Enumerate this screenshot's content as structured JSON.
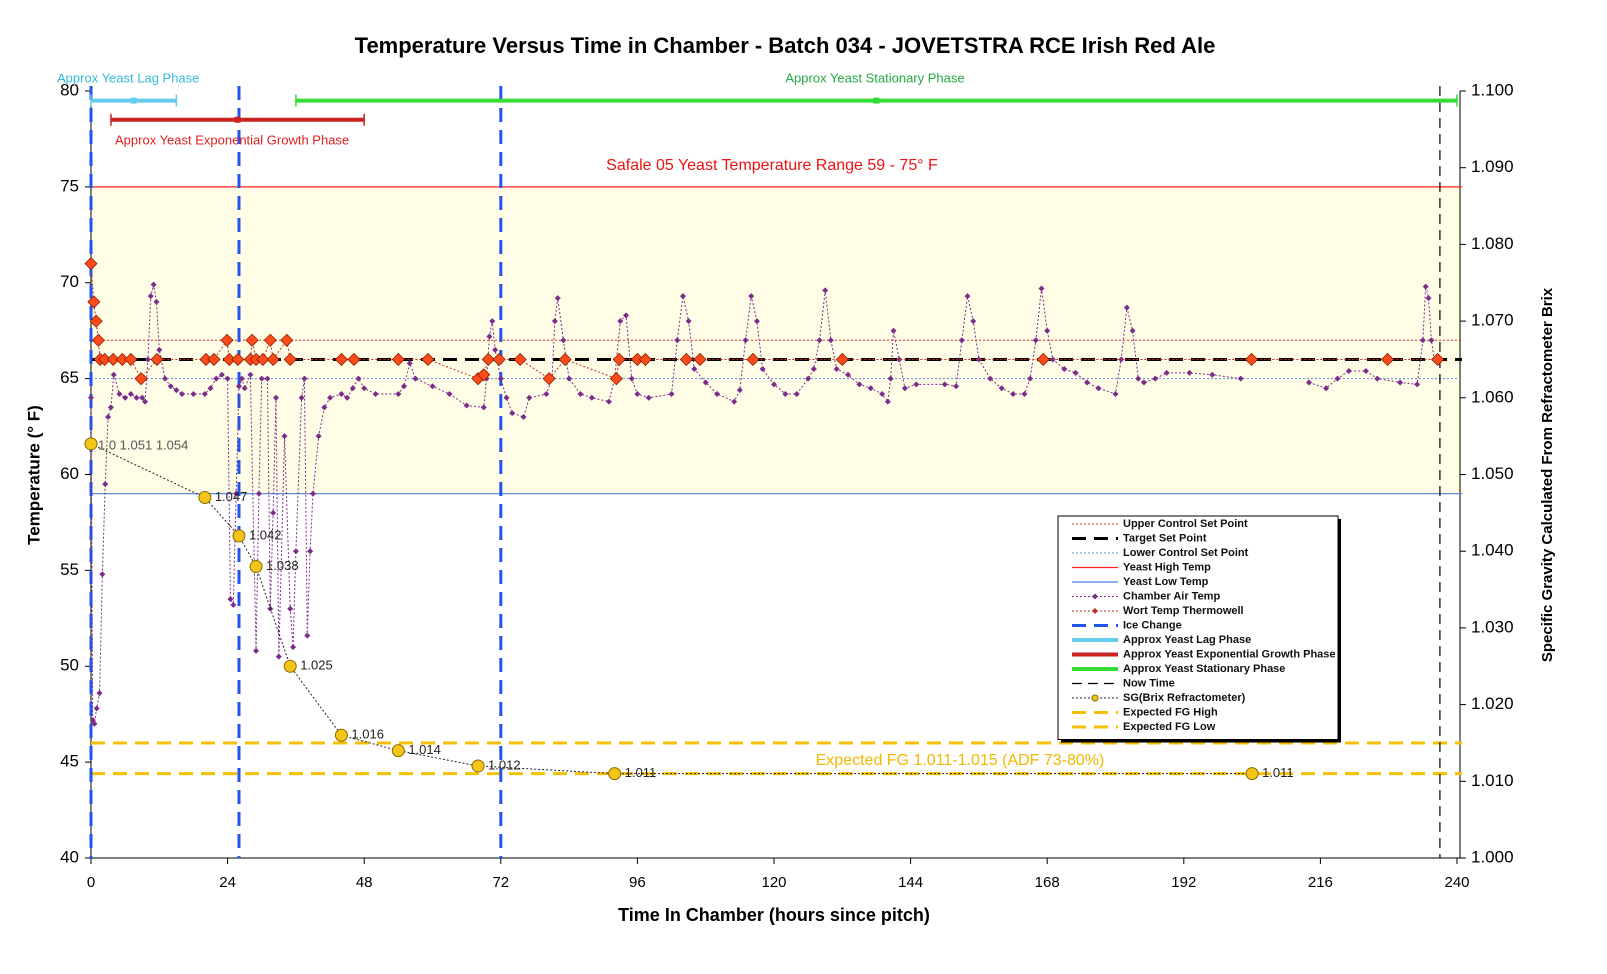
{
  "chart_data": {
    "type": "line",
    "title": "Temperature Versus Time in Chamber - Batch 034 - JOVETSTRA RCE Irish Red Ale",
    "xlabel": "Time In Chamber (hours since pitch)",
    "ylabel": "Temperature (° F)",
    "y2label": "Specific Gravity Calculated From Refractometer Brix",
    "xlim": [
      0,
      240
    ],
    "xticks": [
      0,
      24,
      48,
      72,
      96,
      120,
      144,
      168,
      192,
      216,
      240
    ],
    "ylim": [
      40,
      80
    ],
    "yticks": [
      40,
      45,
      50,
      55,
      60,
      65,
      70,
      75,
      80
    ],
    "y2lim": [
      1.0,
      1.1
    ],
    "y2ticks": [
      {
        "value": 1.0,
        "label": "1.000"
      },
      {
        "value": 1.01,
        "label": "1.010"
      },
      {
        "value": 1.02,
        "label": "1.020"
      },
      {
        "value": 1.03,
        "label": "1.030"
      },
      {
        "value": 1.04,
        "label": "1.040"
      },
      {
        "value": 1.05,
        "label": "1.050"
      },
      {
        "value": 1.06,
        "label": "1.060"
      },
      {
        "value": 1.07,
        "label": "1.070"
      },
      {
        "value": 1.08,
        "label": "1.080"
      },
      {
        "value": 1.09,
        "label": "1.090"
      },
      {
        "value": 1.1,
        "label": "1.100"
      }
    ],
    "legend": "lower right",
    "series": [
      {
        "name": "Upper Control Set Point",
        "kind": "hline",
        "value": 67,
        "color": "#e03030",
        "style": "dotted"
      },
      {
        "name": "Target Set Point",
        "kind": "hline",
        "value": 66,
        "color": "#000000",
        "style": "dashed"
      },
      {
        "name": "Lower Control Set Point",
        "kind": "hline",
        "value": 65,
        "color": "#5b8fd6",
        "style": "dotted"
      },
      {
        "name": "Yeast High Temp",
        "kind": "hline",
        "value": 75,
        "color": "#ff2020",
        "style": "solid"
      },
      {
        "name": "Yeast Low Temp",
        "kind": "hline",
        "value": 59,
        "color": "#4a7fe0",
        "style": "solid"
      },
      {
        "name": "Chamber Air Temp",
        "kind": "line",
        "color": "#7b2d8b",
        "style": "dotted",
        "marker": "diamond",
        "x": [
          0,
          0.3,
          0.6,
          1,
          1.5,
          2,
          2.5,
          3,
          3.5,
          4,
          5,
          6,
          7,
          8,
          9,
          9.5,
          10,
          10.5,
          11,
          11.5,
          12,
          13,
          14,
          15,
          16,
          18,
          20,
          21,
          22,
          23,
          24,
          24.5,
          25,
          25.5,
          26,
          26.5,
          27,
          28,
          29,
          29.5,
          30,
          31,
          31.5,
          32,
          32.5,
          33,
          34,
          35,
          35.5,
          36,
          37,
          37.5,
          38,
          38.5,
          39,
          40,
          41,
          42,
          44,
          45,
          46,
          47,
          48,
          50,
          54,
          55,
          56,
          57,
          60,
          63,
          66,
          69,
          69.5,
          70,
          70.5,
          71,
          72,
          73,
          74,
          76,
          77,
          80,
          81,
          81.5,
          82,
          83,
          84,
          86,
          88,
          91,
          92,
          93,
          94,
          95,
          96,
          98,
          102,
          103,
          104,
          105,
          106,
          108,
          110,
          113,
          114,
          115,
          116,
          117,
          118,
          120,
          122,
          124,
          126,
          127,
          128,
          129,
          130,
          131,
          133,
          135,
          137,
          139,
          140,
          140.5,
          141,
          142,
          143,
          145,
          150,
          152,
          153,
          154,
          155,
          156,
          158,
          160,
          162,
          164,
          165,
          166,
          167,
          168,
          169,
          171,
          173,
          175,
          177,
          180,
          181,
          182,
          183,
          184,
          185,
          187,
          189,
          193,
          197,
          202,
          208,
          214,
          217,
          219,
          221,
          224,
          226,
          230,
          233,
          234,
          234.5,
          235,
          235.5,
          236
        ],
        "values": [
          64,
          47.2,
          47,
          47.8,
          48.6,
          54.8,
          59.5,
          63,
          63.5,
          65.2,
          64.2,
          64,
          64.2,
          64,
          64,
          63.8,
          66,
          69.3,
          69.9,
          69,
          66.5,
          65,
          64.6,
          64.4,
          64.2,
          64.2,
          64.2,
          64.5,
          65,
          65.2,
          65,
          53.5,
          53.2,
          59,
          64.6,
          65,
          64.5,
          65.2,
          50.8,
          59,
          65,
          65,
          53,
          58,
          64,
          50.5,
          62,
          53,
          51,
          56,
          64,
          65,
          51.6,
          56,
          59,
          62,
          63.5,
          64,
          64.2,
          64,
          64.5,
          65,
          64.5,
          64.2,
          64.2,
          64.6,
          65.8,
          65,
          64.6,
          64.2,
          63.6,
          63.5,
          65,
          67.2,
          68,
          66.5,
          65,
          64,
          63.2,
          63,
          64,
          64.2,
          65,
          68,
          69.2,
          67,
          65,
          64.2,
          64,
          63.8,
          65,
          68,
          68.3,
          65,
          64.2,
          64,
          64.2,
          67,
          69.3,
          68,
          65.5,
          64.8,
          64.2,
          63.8,
          64.4,
          67,
          69.3,
          68,
          65.5,
          64.7,
          64.2,
          64.2,
          65,
          65.5,
          67,
          69.6,
          67,
          65.5,
          65.2,
          64.7,
          64.5,
          64.2,
          63.8,
          65,
          67.5,
          66,
          64.5,
          64.7,
          64.7,
          64.6,
          67,
          69.3,
          68,
          66,
          65,
          64.5,
          64.2,
          64.2,
          65,
          67,
          69.7,
          67.5,
          66,
          65.5,
          65.3,
          64.8,
          64.5,
          64.2,
          66,
          68.7,
          67.5,
          65,
          64.8,
          65,
          65.3,
          65.3,
          65.2,
          65,
          null,
          64.8,
          64.5,
          65,
          65.4,
          65.4,
          65,
          64.8,
          64.7,
          67,
          69.8,
          69.2,
          67,
          66
        ]
      },
      {
        "name": "Wort Temp Thermowell",
        "kind": "line",
        "color": "#c0301c",
        "style": "dotted",
        "marker": "bigdiamond",
        "x": [
          0,
          0.5,
          0.9,
          1.3,
          1.6,
          2.4,
          3.9,
          5.5,
          7,
          8.8,
          11.6,
          20.2,
          21.6,
          23.9,
          24.3,
          25.8,
          28,
          28.3,
          29,
          30.2,
          31.5,
          32,
          34.4,
          35,
          44,
          46.2,
          54,
          59.2,
          68,
          69,
          69.8,
          71.7,
          75.4,
          80.5,
          83.3,
          92.3,
          92.8,
          96,
          97.4,
          104.6,
          107,
          116.3,
          132,
          167.3,
          203.9,
          227.8,
          236.6
        ],
        "values": [
          71,
          69,
          68,
          67,
          66,
          66,
          66,
          66,
          66,
          65,
          66,
          66,
          66,
          67,
          66,
          66,
          66,
          67,
          66,
          66,
          67,
          66,
          67,
          66,
          66,
          66,
          66,
          66,
          65,
          65.2,
          66,
          66,
          66,
          65,
          66,
          65,
          66,
          66,
          66,
          66,
          66,
          66,
          66,
          66,
          66,
          66,
          66
        ]
      },
      {
        "name": "Ice Change",
        "kind": "vline",
        "x": [
          0,
          26,
          72
        ],
        "color": "#2255ee",
        "style": "dashed"
      },
      {
        "name": "Approx Yeast Lag Phase",
        "kind": "span",
        "x": [
          0,
          15
        ],
        "values": [
          79.5,
          79.5
        ],
        "color": "#66ccee",
        "style": "solid"
      },
      {
        "name": "Approx Yeast Exponential Growth Phase",
        "kind": "span",
        "x": [
          3.5,
          48
        ],
        "values": [
          78.5,
          78.5
        ],
        "color": "#cc2222",
        "style": "solid"
      },
      {
        "name": "Approx Yeast Stationary Phase",
        "kind": "span",
        "x": [
          36,
          240
        ],
        "values": [
          79.5,
          79.5
        ],
        "color": "#33dd33",
        "style": "solid"
      },
      {
        "name": "Now Time",
        "kind": "vline",
        "x": [
          237
        ],
        "color": "#000000",
        "style": "thindash"
      },
      {
        "name": "SG(Brix Refractometer)",
        "kind": "line",
        "axis": "y2",
        "color": "#f5c518",
        "style": "dotted",
        "marker": "circle",
        "x": [
          0,
          20,
          26,
          29,
          35,
          44,
          54,
          68,
          92,
          204
        ],
        "values": [
          1.054,
          1.047,
          1.042,
          1.038,
          1.025,
          1.016,
          1.014,
          1.012,
          1.011,
          1.011
        ]
      },
      {
        "name": "Expected FG High",
        "kind": "hline",
        "axis": "y2",
        "value": 1.015,
        "color": "#f5c000",
        "style": "dashed"
      },
      {
        "name": "Expected FG Low",
        "kind": "hline",
        "axis": "y2",
        "value": 1.011,
        "color": "#f5c000",
        "style": "dashed"
      }
    ],
    "annotations": [
      {
        "text": "Approx Yeast Lag Phase",
        "color": "#33bbdd"
      },
      {
        "text": "Approx Yeast Exponential Growth Phase",
        "color": "#dd2222"
      },
      {
        "text": "Approx Yeast Stationary Phase",
        "color": "#22aa44"
      },
      {
        "text": "Safale 05 Yeast Temperature Range 59 - 75° F",
        "color": "#ee1111"
      },
      {
        "text": "Expected FG 1.011-1.015 (ADF 73-80%)",
        "color": "#f0b800"
      },
      {
        "text": "1.0 1.051 1.054",
        "color": "#555555"
      }
    ]
  }
}
